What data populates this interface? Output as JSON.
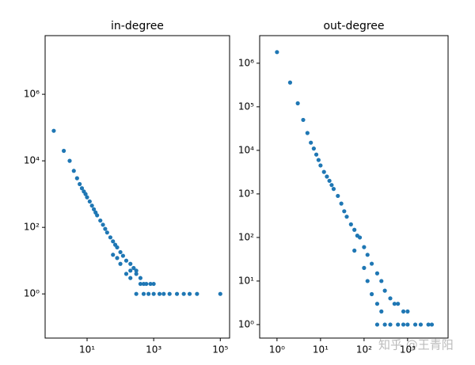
{
  "chart_data": [
    {
      "type": "scatter",
      "title": "in-degree",
      "xscale": "log",
      "yscale": "log",
      "xlim": [
        0.55,
        190000
      ],
      "ylim": [
        0.047,
        58000000
      ],
      "xticks": [
        {
          "value": 10,
          "label": "10¹"
        },
        {
          "value": 1000,
          "label": "10³"
        },
        {
          "value": 100000,
          "label": "10⁵"
        }
      ],
      "yticks": [
        {
          "value": 1,
          "label": "10⁰"
        },
        {
          "value": 100,
          "label": "10²"
        },
        {
          "value": 10000,
          "label": "10⁴"
        },
        {
          "value": 1000000,
          "label": "10⁶"
        }
      ],
      "series": [
        {
          "color": "#1f77b4",
          "x": [
            1,
            2,
            3,
            4,
            5,
            6,
            7,
            8,
            9,
            10,
            12,
            14,
            16,
            18,
            20,
            25,
            30,
            35,
            40,
            50,
            60,
            70,
            80,
            100,
            120,
            150,
            200,
            250,
            300,
            400,
            500,
            600,
            800,
            1000,
            1500,
            2000,
            3000,
            5000,
            8000,
            12000,
            20000,
            100000,
            150,
            200,
            300,
            400,
            300,
            500,
            700,
            1000,
            60,
            80,
            100,
            200
          ],
          "values": [
            80000,
            20000,
            10000,
            5000,
            3000,
            2000,
            1500,
            1200,
            1000,
            800,
            600,
            450,
            350,
            280,
            230,
            160,
            120,
            90,
            70,
            50,
            38,
            30,
            25,
            18,
            14,
            10,
            8,
            6,
            5,
            3,
            2,
            2,
            2,
            2,
            1,
            1,
            1,
            1,
            1,
            1,
            1,
            1,
            4,
            3,
            4,
            2,
            1,
            1,
            1,
            1,
            15,
            12,
            8,
            5
          ]
        }
      ]
    },
    {
      "type": "scatter",
      "title": "out-degree",
      "xscale": "log",
      "yscale": "log",
      "xlim": [
        0.4,
        8500
      ],
      "ylim": [
        0.49,
        4300000
      ],
      "xticks": [
        {
          "value": 1,
          "label": "10⁰"
        },
        {
          "value": 10,
          "label": "10¹"
        },
        {
          "value": 100,
          "label": "10²"
        },
        {
          "value": 1000,
          "label": "10³"
        }
      ],
      "yticks": [
        {
          "value": 1,
          "label": "10⁰"
        },
        {
          "value": 10,
          "label": "10¹"
        },
        {
          "value": 100,
          "label": "10²"
        },
        {
          "value": 1000,
          "label": "10³"
        },
        {
          "value": 10000,
          "label": "10⁴"
        },
        {
          "value": 100000,
          "label": "10⁵"
        },
        {
          "value": 1000000,
          "label": "10⁶"
        }
      ],
      "series": [
        {
          "color": "#1f77b4",
          "x": [
            1,
            2,
            3,
            4,
            5,
            6,
            7,
            8,
            9,
            10,
            12,
            14,
            16,
            18,
            20,
            25,
            30,
            35,
            40,
            50,
            60,
            70,
            80,
            100,
            120,
            150,
            200,
            250,
            300,
            400,
            500,
            600,
            800,
            1000,
            1500,
            200,
            300,
            400,
            600,
            800,
            1000,
            2000,
            3000,
            3600,
            150,
            200,
            250,
            120,
            100,
            60
          ],
          "values": [
            1800000,
            360000,
            120000,
            50000,
            25000,
            15000,
            11000,
            8000,
            6000,
            4500,
            3200,
            2500,
            2000,
            1600,
            1300,
            900,
            600,
            400,
            300,
            200,
            150,
            110,
            100,
            60,
            40,
            25,
            15,
            10,
            6,
            4,
            3,
            3,
            2,
            2,
            1,
            1,
            1,
            1,
            1,
            1,
            1,
            1,
            1,
            1,
            5,
            3,
            2,
            10,
            20,
            50
          ]
        }
      ]
    }
  ],
  "watermark": "知乎 @王青阳"
}
